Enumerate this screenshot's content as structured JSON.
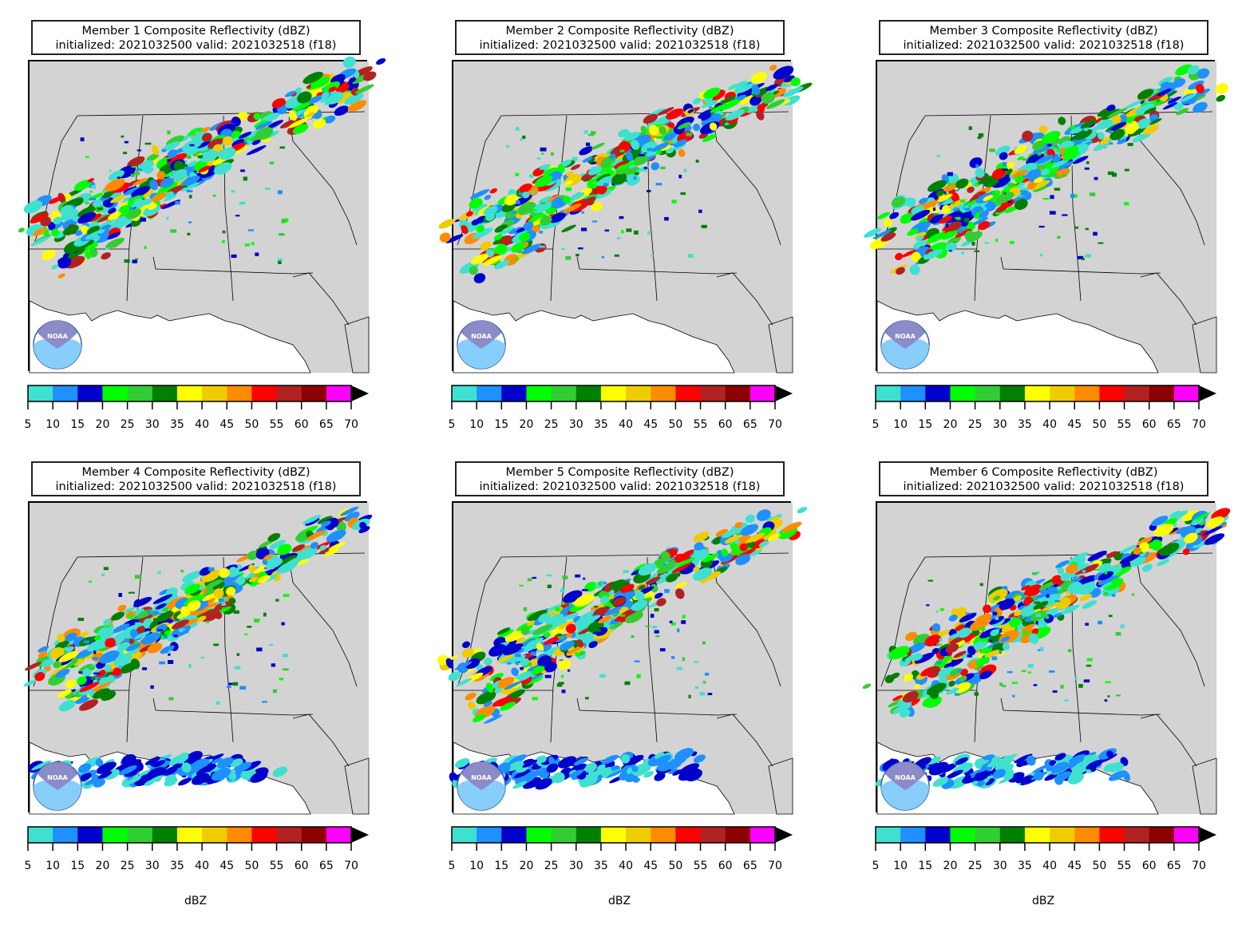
{
  "panels": [
    {
      "title_line1": "Member 1 Composite Reflectivity (dBZ)",
      "title_line2": "initialized: 2021032500 valid: 2021032518 (f18)"
    },
    {
      "title_line1": "Member 2 Composite Reflectivity (dBZ)",
      "title_line2": "initialized: 2021032500 valid: 2021032518 (f18)"
    },
    {
      "title_line1": "Member 3 Composite Reflectivity (dBZ)",
      "title_line2": "initialized: 2021032500 valid: 2021032518 (f18)"
    },
    {
      "title_line1": "Member 4 Composite Reflectivity (dBZ)",
      "title_line2": "initialized: 2021032500 valid: 2021032518 (f18)"
    },
    {
      "title_line1": "Member 5 Composite Reflectivity (dBZ)",
      "title_line2": "initialized: 2021032500 valid: 2021032518 (f18)"
    },
    {
      "title_line1": "Member 6 Composite Reflectivity (dBZ)",
      "title_line2": "initialized: 2021032500 valid: 2021032518 (f18)"
    }
  ],
  "colorbar": {
    "ticks": [
      "5",
      "10",
      "15",
      "20",
      "25",
      "30",
      "35",
      "40",
      "45",
      "50",
      "55",
      "60",
      "65",
      "70"
    ],
    "colors": [
      "#40e0d0",
      "#1e90ff",
      "#0000cd",
      "#00ff00",
      "#32cd32",
      "#008000",
      "#ffff00",
      "#eecc00",
      "#ff8c00",
      "#ff0000",
      "#b22222",
      "#8b0000",
      "#ff00ff"
    ],
    "extend_color": "#000000",
    "label": "dBZ"
  },
  "logo": {
    "icon": "noaa-logo-icon",
    "text": "NOAA"
  }
}
